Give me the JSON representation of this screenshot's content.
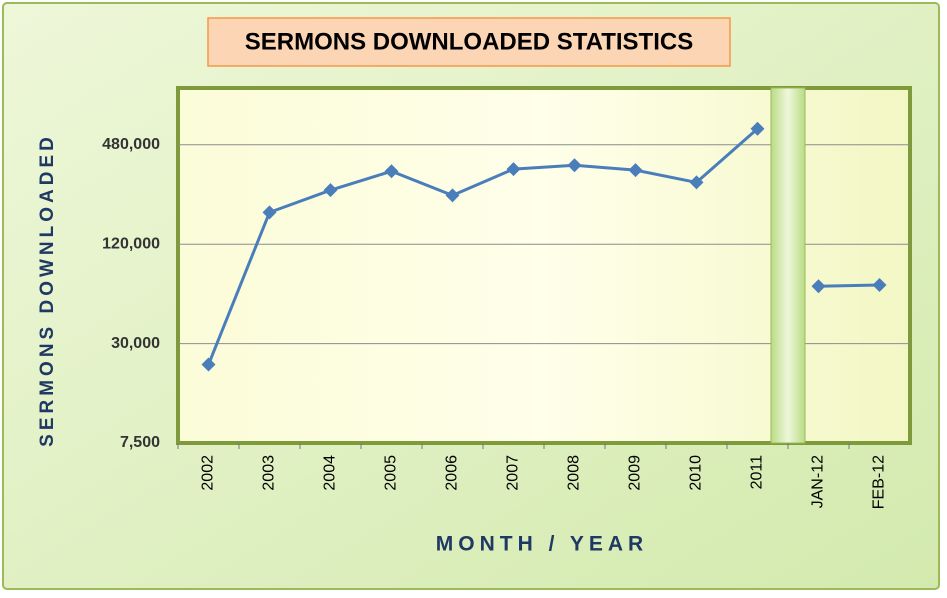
{
  "chart_data": {
    "type": "line",
    "title": "SERMONS DOWNLOADED STATISTICS",
    "x_label": "MONTH / YEAR",
    "y_label": "SERMONS DOWNLOADED",
    "categories": [
      "2002",
      "2003",
      "2004",
      "2005",
      "2006",
      "2007",
      "2008",
      "2009",
      "2010",
      "2011",
      null,
      "JAN-12",
      "FEB-12"
    ],
    "values": [
      22400,
      187000,
      255000,
      332000,
      237000,
      342000,
      361000,
      337000,
      284000,
      600000,
      null,
      66800,
      67900
    ],
    "color": "#4a7ebb",
    "log_scale": true,
    "grid": true,
    "ylim": [
      7500,
      1060000
    ],
    "yticks": [
      {
        "value": 7500,
        "label": "7,500"
      },
      {
        "value": 30000,
        "label": "30,000"
      },
      {
        "value": 120000,
        "label": "120,000"
      },
      {
        "value": 480000,
        "label": "480,000"
      }
    ]
  }
}
